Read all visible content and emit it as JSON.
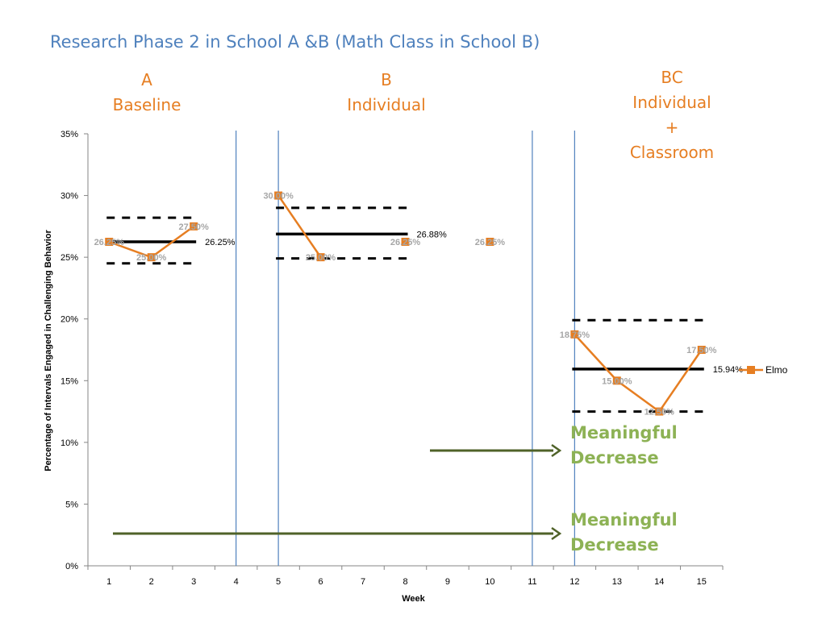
{
  "title": "Research Phase 2 in School A &B (Math Class in School B)",
  "phases": [
    {
      "lines": [
        "A",
        "Baseline"
      ]
    },
    {
      "lines": [
        "B",
        "Individual"
      ]
    },
    {
      "lines": [
        "BC",
        "Individual",
        "+",
        "Classroom"
      ]
    }
  ],
  "annotations": [
    {
      "lines": [
        "Meaningful",
        "Decrease"
      ]
    },
    {
      "lines": [
        "Meaningful",
        "Decrease"
      ]
    }
  ],
  "colors": {
    "title": "#4f81bd",
    "phase_labels": "#e67e22",
    "series": "#e67e22",
    "annotation_text": "#8db255",
    "annotation_arrow": "#4f6228",
    "phase_divider": "#4f81bd",
    "mean_line": "#000000",
    "point_label": "#a6a6a6"
  },
  "chart_data": {
    "type": "line",
    "xlabel": "Week",
    "ylabel": "Percentage of Intervals Engaged in Challenging Behavior",
    "categories": [
      "1",
      "2",
      "3",
      "4",
      "5",
      "6",
      "7",
      "8",
      "9",
      "10",
      "11",
      "12",
      "13",
      "14",
      "15"
    ],
    "ylim": [
      0,
      35
    ],
    "yticks": [
      "0%",
      "5%",
      "10%",
      "15%",
      "20%",
      "25%",
      "30%",
      "35%"
    ],
    "grid": false,
    "legend_position": "right",
    "series": [
      {
        "name": "Elmo",
        "values": [
          26.25,
          25.0,
          27.5,
          null,
          30.0,
          25.0,
          null,
          26.25,
          null,
          26.25,
          null,
          18.75,
          15.0,
          12.5,
          17.5
        ],
        "labels": [
          "26.25%",
          "25.00%",
          "27.50%",
          "",
          "30.00%",
          "25.00%",
          "",
          "26.25%",
          "",
          "26.25%",
          "",
          "18.75%",
          "15.00%",
          "12.50%",
          "17.50%"
        ]
      }
    ],
    "phase_dividers_after_week": [
      3.5,
      4.5,
      10.5,
      11.5
    ],
    "phase_means": [
      {
        "from": 1,
        "to": 3,
        "mean": 26.25,
        "upper": 28.2,
        "lower": 24.5,
        "label": "26.25%"
      },
      {
        "from": 5,
        "to": 8,
        "mean": 26.88,
        "upper": 29.0,
        "lower": 24.9,
        "label": "26.88%"
      },
      {
        "from": 12,
        "to": 15,
        "mean": 15.94,
        "upper": 19.9,
        "lower": 12.5,
        "label": "15.94%"
      }
    ]
  }
}
